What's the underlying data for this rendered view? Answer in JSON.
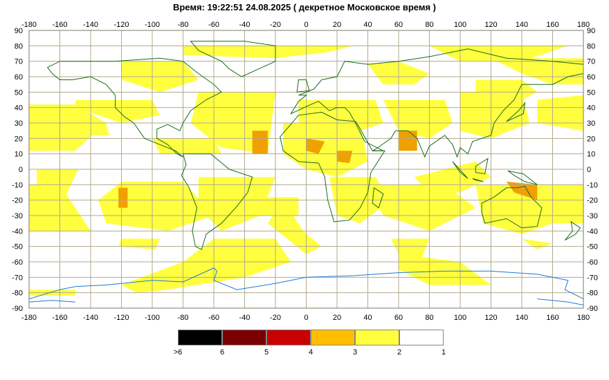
{
  "title": "Время: 19:22:51   24.08.2025  ( декретное Московское время )",
  "map": {
    "lon_ticks": [
      "-180",
      "-160",
      "-140",
      "-120",
      "-100",
      "-80",
      "-60",
      "-40",
      "-20",
      "0",
      "20",
      "40",
      "60",
      "80",
      "100",
      "120",
      "140",
      "160",
      "180"
    ],
    "lat_ticks": [
      "90",
      "80",
      "70",
      "60",
      "50",
      "40",
      "30",
      "20",
      "10",
      "0",
      "-10",
      "-20",
      "-30",
      "-40",
      "-50",
      "-60",
      "-70",
      "-80",
      "-90"
    ],
    "grid_color": "#b0aa8a",
    "land_outline_color": "#1a6a1a",
    "antarctica_color": "#1e78d8"
  },
  "legend": {
    "swatches": [
      {
        "color": "#000000",
        "label": ">6"
      },
      {
        "color": "#780000",
        "label": "6"
      },
      {
        "color": "#c80000",
        "label": "5"
      },
      {
        "color": "#ffbe00",
        "label": "4"
      },
      {
        "color": "#ffff40",
        "label": "3"
      },
      {
        "color": "#ffffff",
        "label": "2"
      }
    ],
    "last_label": "1"
  }
}
